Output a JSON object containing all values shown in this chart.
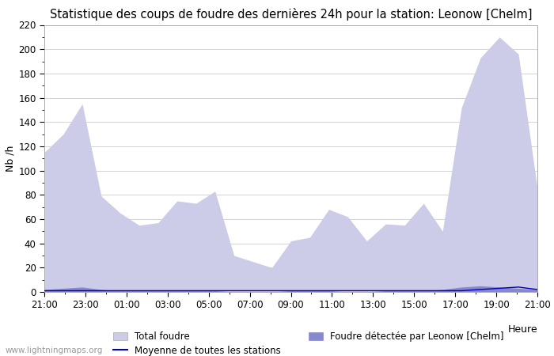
{
  "title": "Statistique des coups de foudre des dernières 24h pour la station: Leonow [Chelm]",
  "ylabel": "Nb /h",
  "xlabel_text": "Heure",
  "ylim": [
    0,
    220
  ],
  "yticks": [
    0,
    20,
    40,
    60,
    80,
    100,
    120,
    140,
    160,
    180,
    200,
    220
  ],
  "x_major_labels": [
    "21:00",
    "23:00",
    "01:00",
    "03:00",
    "05:00",
    "07:00",
    "09:00",
    "11:00",
    "13:00",
    "15:00",
    "17:00",
    "19:00",
    "21:00"
  ],
  "x_major_positions": [
    0,
    2,
    4,
    6,
    8,
    10,
    12,
    14,
    16,
    18,
    20,
    22,
    24
  ],
  "color_total": "#cccce8",
  "color_detectee": "#8888cc",
  "color_moyenne": "#0000bb",
  "background_color": "#ffffff",
  "grid_color": "#cccccc",
  "watermark": "www.lightningmaps.org",
  "legend_total": "Total foudre",
  "legend_detectee": "Foudre détectée par Leonow [Chelm]",
  "legend_moyenne": "Moyenne de toutes les stations",
  "title_fontsize": 10.5,
  "axis_label_fontsize": 9,
  "tick_fontsize": 8.5,
  "legend_fontsize": 8.5,
  "total_y": [
    115,
    130,
    155,
    79,
    65,
    55,
    57,
    75,
    73,
    83,
    30,
    25,
    20,
    42,
    45,
    68,
    62,
    42,
    56,
    55,
    73,
    50,
    152,
    193,
    210,
    196,
    85
  ],
  "detect_y": [
    2,
    3,
    4,
    2,
    1,
    1,
    1,
    1,
    1,
    1,
    0,
    0,
    0,
    1,
    1,
    1,
    0,
    0,
    1,
    1,
    1,
    2,
    4,
    5,
    4,
    3,
    2
  ],
  "moyenne_y": [
    1,
    1,
    1,
    1,
    1,
    1,
    1,
    1,
    1,
    1,
    1,
    1,
    1,
    1,
    1,
    1,
    1,
    1,
    1,
    1,
    1,
    1,
    1,
    2,
    3,
    4,
    2
  ]
}
